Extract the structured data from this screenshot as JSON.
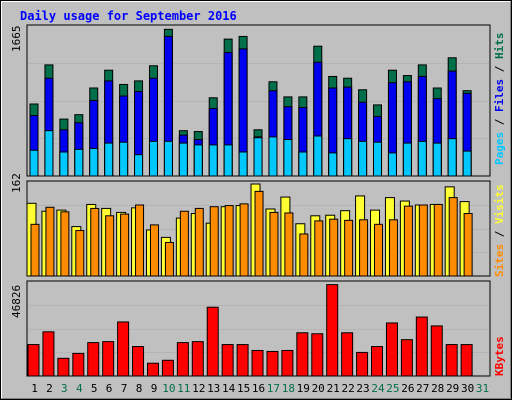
{
  "title": "Daily usage for September 2016",
  "colors": {
    "background": "#c0c0c0",
    "plot": "#c0c0c0",
    "title": "#0000ff",
    "hits": "#006f4a",
    "files": "#0000f0",
    "pages": "#00c8ff",
    "visits": "#ffff33",
    "sites": "#ff8c00",
    "kbytes": "#ff0000",
    "label_dark": "#000000",
    "weekend": "#006f4a"
  },
  "chart_data": [
    {
      "type": "bar",
      "panel": "hits",
      "ymax_label": "1665",
      "ymax": 1665,
      "legend": [
        "Pages",
        "Files",
        "Hits"
      ],
      "categories": [
        "1",
        "2",
        "3",
        "4",
        "5",
        "6",
        "7",
        "8",
        "9",
        "10",
        "11",
        "12",
        "13",
        "14",
        "15",
        "16",
        "17",
        "18",
        "19",
        "20",
        "21",
        "22",
        "23",
        "24",
        "25",
        "26",
        "27",
        "28",
        "29",
        "30"
      ],
      "series": [
        {
          "name": "Hits",
          "values": [
            810,
            1250,
            640,
            690,
            990,
            1190,
            1030,
            1070,
            1240,
            1650,
            510,
            500,
            880,
            1540,
            1570,
            520,
            1060,
            890,
            890,
            1460,
            1120,
            1100,
            970,
            800,
            1190,
            1130,
            1250,
            990,
            1330,
            960
          ]
        },
        {
          "name": "Files",
          "values": [
            680,
            1100,
            520,
            600,
            850,
            1070,
            900,
            950,
            1100,
            1570,
            460,
            410,
            760,
            1390,
            1430,
            440,
            960,
            780,
            770,
            1280,
            990,
            1000,
            830,
            670,
            1050,
            1060,
            1120,
            870,
            1180,
            930
          ]
        },
        {
          "name": "Pages",
          "values": [
            290,
            510,
            270,
            300,
            310,
            370,
            380,
            240,
            390,
            390,
            370,
            350,
            350,
            350,
            270,
            430,
            440,
            410,
            270,
            450,
            260,
            420,
            390,
            380,
            260,
            370,
            390,
            370,
            420,
            280
          ]
        }
      ]
    },
    {
      "type": "bar",
      "panel": "visits",
      "ymax_label": "162",
      "ymax": 162,
      "legend": [
        "Sites",
        "Visits"
      ],
      "categories": [
        "1",
        "2",
        "3",
        "4",
        "5",
        "6",
        "7",
        "8",
        "9",
        "10",
        "11",
        "12",
        "13",
        "14",
        "15",
        "16",
        "17",
        "18",
        "19",
        "20",
        "21",
        "22",
        "23",
        "24",
        "25",
        "26",
        "27",
        "28",
        "29",
        "30"
      ],
      "series": [
        {
          "name": "Visits",
          "values": [
            128,
            114,
            116,
            87,
            126,
            119,
            112,
            120,
            81,
            68,
            102,
            110,
            93,
            122,
            124,
            162,
            118,
            139,
            92,
            106,
            107,
            115,
            141,
            116,
            138,
            132,
            125,
            126,
            157,
            131
          ]
        },
        {
          "name": "Sites",
          "values": [
            91,
            121,
            113,
            80,
            119,
            106,
            109,
            125,
            90,
            59,
            114,
            119,
            122,
            124,
            127,
            149,
            112,
            111,
            74,
            97,
            100,
            98,
            99,
            91,
            99,
            123,
            125,
            126,
            138,
            110
          ]
        }
      ]
    },
    {
      "type": "bar",
      "panel": "kbytes",
      "ymax_label": "46826",
      "ymax": 46826,
      "legend": [
        "KBytes"
      ],
      "categories": [
        "1",
        "2",
        "3",
        "4",
        "5",
        "6",
        "7",
        "8",
        "9",
        "10",
        "11",
        "12",
        "13",
        "14",
        "15",
        "16",
        "17",
        "18",
        "19",
        "20",
        "21",
        "22",
        "23",
        "24",
        "25",
        "26",
        "27",
        "28",
        "29",
        "30"
      ],
      "series": [
        {
          "name": "KBytes",
          "values": [
            16000,
            22500,
            9000,
            11500,
            17000,
            17500,
            27500,
            15000,
            6500,
            8000,
            17000,
            17500,
            35000,
            16000,
            16000,
            13000,
            12500,
            13000,
            22000,
            21500,
            46500,
            22000,
            12000,
            15000,
            27000,
            18500,
            30000,
            25500,
            16000,
            16000
          ]
        }
      ]
    }
  ],
  "day_labels": [
    {
      "label": "1",
      "weekend": false
    },
    {
      "label": "2",
      "weekend": false
    },
    {
      "label": "3",
      "weekend": true
    },
    {
      "label": "4",
      "weekend": true
    },
    {
      "label": "5",
      "weekend": false
    },
    {
      "label": "6",
      "weekend": false
    },
    {
      "label": "7",
      "weekend": false
    },
    {
      "label": "8",
      "weekend": false
    },
    {
      "label": "9",
      "weekend": false
    },
    {
      "label": "10",
      "weekend": true
    },
    {
      "label": "11",
      "weekend": true
    },
    {
      "label": "12",
      "weekend": false
    },
    {
      "label": "13",
      "weekend": false
    },
    {
      "label": "14",
      "weekend": false
    },
    {
      "label": "15",
      "weekend": false
    },
    {
      "label": "16",
      "weekend": false
    },
    {
      "label": "17",
      "weekend": true
    },
    {
      "label": "18",
      "weekend": true
    },
    {
      "label": "19",
      "weekend": false
    },
    {
      "label": "20",
      "weekend": false
    },
    {
      "label": "21",
      "weekend": false
    },
    {
      "label": "22",
      "weekend": false
    },
    {
      "label": "23",
      "weekend": false
    },
    {
      "label": "24",
      "weekend": true
    },
    {
      "label": "25",
      "weekend": true
    },
    {
      "label": "26",
      "weekend": false
    },
    {
      "label": "27",
      "weekend": false
    },
    {
      "label": "28",
      "weekend": false
    },
    {
      "label": "29",
      "weekend": false
    },
    {
      "label": "30",
      "weekend": false
    },
    {
      "label": "31",
      "weekend": true
    }
  ]
}
